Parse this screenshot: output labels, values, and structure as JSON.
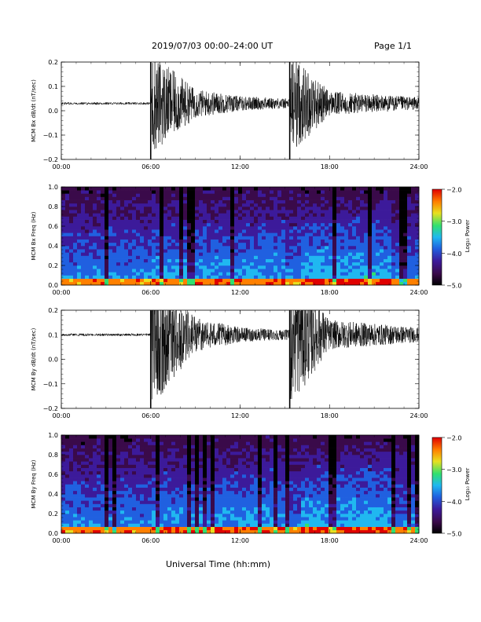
{
  "header": {
    "title": "2019/07/03  00:00–24:00 UT",
    "page": "Page 1/1"
  },
  "x_axis_title": "Universal Time (hh:mm)",
  "x_ticks": [
    "00:00",
    "06:00",
    "12:00",
    "18:00",
    "24:00"
  ],
  "colors": {
    "trace": "#000000",
    "colorscale": [
      "#000000",
      "#3a0a4a",
      "#3c1a9a",
      "#2060e0",
      "#20b8f0",
      "#30e070",
      "#e8e020",
      "#ff8000",
      "#e00000"
    ]
  },
  "chart_data": [
    {
      "type": "line",
      "ylabel": "MCM Bx dB/dt (nT/sec)",
      "xlim": [
        "00:00",
        "24:00"
      ],
      "ylim": [
        -0.2,
        0.2
      ],
      "y_ticks": [
        "0.2",
        "0.1",
        "0.0",
        "−0.1",
        "−0.2"
      ],
      "series": [
        {
          "x": [
            "00:00",
            "06:00",
            "06:00",
            "09:00",
            "12:00",
            "15:20",
            "15:20",
            "18:00",
            "24:00"
          ],
          "y": [
            0.03,
            0.03,
            0.03,
            0.03,
            0.03,
            0.03,
            0.03,
            0.03,
            0.03
          ],
          "envelope": [
            0.005,
            0.005,
            0.21,
            0.06,
            0.03,
            0.02,
            0.21,
            0.05,
            0.025
          ]
        }
      ]
    },
    {
      "type": "heatmap",
      "ylabel": "MCM Bx Freq (Hz)",
      "xlim": [
        "00:00",
        "24:00"
      ],
      "ylim": [
        0,
        1.0
      ],
      "y_ticks": [
        "1.0",
        "0.8",
        "0.6",
        "0.4",
        "0.2",
        "0.0"
      ],
      "colorbar": {
        "label": "Log₁₀ Power",
        "range": [
          -5.0,
          -2.0
        ],
        "ticks": [
          "−2.0",
          "−3.0",
          "−4.0",
          "−5.0"
        ]
      }
    },
    {
      "type": "line",
      "ylabel": "MCM By dB/dt (nT/sec)",
      "xlim": [
        "00:00",
        "24:00"
      ],
      "ylim": [
        -0.2,
        0.2
      ],
      "y_ticks": [
        "0.2",
        "0.1",
        "0.0",
        "−0.1",
        "−0.2"
      ],
      "series": [
        {
          "x": [
            "00:00",
            "06:00",
            "06:00",
            "09:00",
            "12:00",
            "15:20",
            "15:20",
            "18:00",
            "24:00"
          ],
          "y": [
            0.1,
            0.1,
            0.1,
            0.1,
            0.1,
            0.1,
            0.1,
            0.1,
            0.1
          ],
          "envelope": [
            0.005,
            0.005,
            0.3,
            0.07,
            0.03,
            0.02,
            0.3,
            0.06,
            0.03
          ]
        }
      ]
    },
    {
      "type": "heatmap",
      "ylabel": "MCM By Freq (Hz)",
      "xlim": [
        "00:00",
        "24:00"
      ],
      "ylim": [
        0,
        1.0
      ],
      "y_ticks": [
        "1.0",
        "0.8",
        "0.6",
        "0.4",
        "0.2",
        "0.0"
      ],
      "colorbar": {
        "label": "Log₁₀ Power",
        "range": [
          -5.0,
          -2.0
        ],
        "ticks": [
          "−2.0",
          "−3.0",
          "−4.0",
          "−5.0"
        ]
      }
    }
  ]
}
